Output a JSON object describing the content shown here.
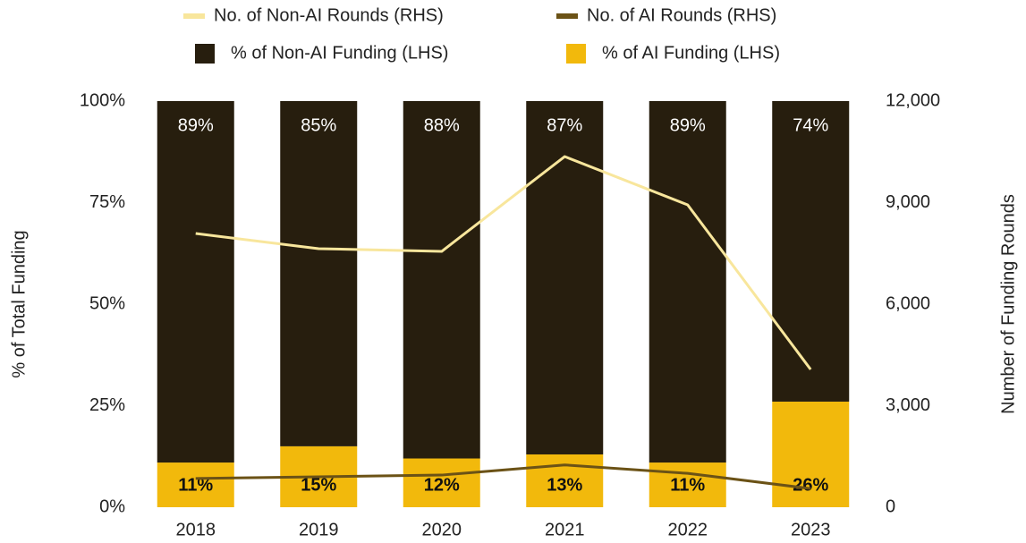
{
  "chart_data": {
    "type": "bar",
    "stacked": true,
    "categories": [
      "2018",
      "2019",
      "2020",
      "2021",
      "2022",
      "2023"
    ],
    "ylabel": "% of Total Funding",
    "y2label": "Number of Funding Rounds",
    "ylim": [
      0,
      100
    ],
    "yticks": [
      {
        "value": 0,
        "label": "0%"
      },
      {
        "value": 25,
        "label": "25%"
      },
      {
        "value": 50,
        "label": "50%"
      },
      {
        "value": 75,
        "label": "75%"
      },
      {
        "value": 100,
        "label": "100%"
      }
    ],
    "y2lim": [
      0,
      12000
    ],
    "y2ticks": [
      0,
      {
        "value": 3000,
        "label": "3,000"
      },
      {
        "value": 6000,
        "label": "6,000"
      },
      {
        "value": 9000,
        "label": "9,000"
      },
      {
        "value": 12000,
        "label": "12,000"
      }
    ],
    "series": [
      {
        "name": "No. of Non-AI Rounds (RHS)",
        "color": "#f8e69c",
        "axis": "y2",
        "values": [
          8088,
          7639,
          7559,
          10361,
          8934,
          4070
        ]
      },
      {
        "name": "No. of AI Rounds (RHS)",
        "color": "#6b5216",
        "axis": "y2",
        "values": [
          850,
          900,
          950,
          1250,
          1000,
          550
        ]
      },
      {
        "name": "% of Non-AI Funding (LHS)",
        "color": "#271e0e",
        "values": [
          89,
          85,
          88,
          87,
          89,
          74
        ],
        "value_labels": [
          "89%",
          "85%",
          "88%",
          "87%",
          "89%",
          "74%"
        ]
      },
      {
        "name": "% of AI Funding (LHS)",
        "color": "#f2b90c",
        "values": [
          11,
          15,
          12,
          13,
          11,
          26
        ],
        "value_labels": [
          "11%",
          "15%",
          "12%",
          "13%",
          "11%",
          "26%"
        ]
      }
    ]
  }
}
